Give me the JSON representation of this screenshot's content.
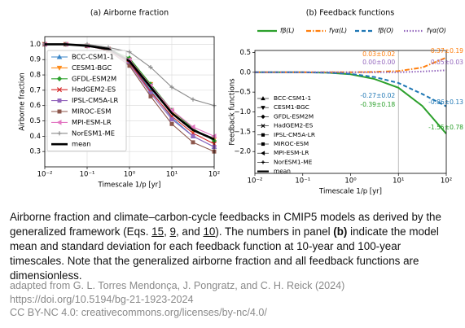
{
  "chart_data": [
    {
      "type": "line",
      "title": "(a)   Airborne fraction",
      "xlabel": "Timescale 1/p [yr]",
      "ylabel": "Airborne fraction",
      "log_x": true,
      "grid": true,
      "legend": "lower left",
      "xlim": [
        0.01,
        100
      ],
      "ylim": [
        0.2,
        1.05
      ],
      "xticks": [
        {
          "value": 0.01,
          "label": "10⁻²"
        },
        {
          "value": 0.1,
          "label": "10⁻¹"
        },
        {
          "value": 1,
          "label": "10⁰"
        },
        {
          "value": 10,
          "label": "10¹"
        },
        {
          "value": 100,
          "label": "10²"
        }
      ],
      "yticks": [
        0.3,
        0.4,
        0.5,
        0.6,
        0.7,
        0.8,
        0.9,
        {
          "value": 1.0,
          "label": "1.0"
        }
      ],
      "x": [
        0.01,
        0.0316,
        0.1,
        0.316,
        1,
        3.16,
        10,
        31.6,
        100
      ],
      "series": [
        {
          "name": "BCC-CSM1-1",
          "color": "#3a86c8",
          "marker": "triangle-up",
          "values": [
            1.0,
            1.0,
            0.99,
            0.96,
            0.88,
            0.7,
            0.52,
            0.4,
            0.33
          ]
        },
        {
          "name": "CESM1-BGC",
          "color": "#ff8c1a",
          "marker": "triangle-down",
          "values": [
            1.0,
            1.0,
            0.99,
            0.97,
            0.9,
            0.74,
            0.56,
            0.44,
            0.38
          ]
        },
        {
          "name": "GFDL-ESM2M",
          "color": "#2ca02c",
          "marker": "diamond",
          "values": [
            1.0,
            1.0,
            0.99,
            0.97,
            0.91,
            0.74,
            0.57,
            0.45,
            0.37
          ]
        },
        {
          "name": "HadGEM2-ES",
          "color": "#d62728",
          "marker": "x",
          "values": [
            1.0,
            1.0,
            0.99,
            0.96,
            0.88,
            0.69,
            0.53,
            0.42,
            0.35
          ]
        },
        {
          "name": "IPSL-CM5A-LR",
          "color": "#9467bd",
          "marker": "square",
          "values": [
            1.0,
            1.0,
            0.99,
            0.96,
            0.87,
            0.68,
            0.51,
            0.4,
            0.33
          ]
        },
        {
          "name": "MIROC-ESM",
          "color": "#8c564b",
          "marker": "square",
          "values": [
            1.0,
            1.0,
            0.99,
            0.96,
            0.86,
            0.66,
            0.48,
            0.36,
            0.3
          ]
        },
        {
          "name": "MPI-ESM-LR",
          "color": "#e377c2",
          "marker": "triangle-left",
          "values": [
            1.0,
            1.0,
            0.99,
            0.97,
            0.9,
            0.73,
            0.57,
            0.46,
            0.4
          ]
        },
        {
          "name": "NorESM1-ME",
          "color": "#8c8c8c",
          "marker": "plus",
          "values": [
            1.0,
            1.0,
            1.0,
            0.98,
            0.95,
            0.85,
            0.72,
            0.64,
            0.6
          ]
        },
        {
          "name": "mean",
          "color": "#000000",
          "marker": "none",
          "values": [
            1.0,
            1.0,
            0.99,
            0.97,
            0.89,
            0.72,
            0.55,
            0.44,
            0.38
          ]
        }
      ]
    },
    {
      "type": "line",
      "title": "(b)   Feedback functions",
      "xlabel": "Timescale 1/p [yr]",
      "ylabel": "Feedback functions",
      "log_x": true,
      "grid": false,
      "legend": "top",
      "xlim": [
        0.01,
        100
      ],
      "ylim": [
        -2.55,
        0.55
      ],
      "vline": 10,
      "xticks": [
        {
          "value": 0.01,
          "label": "10⁻²"
        },
        {
          "value": 0.1,
          "label": "10⁻¹"
        },
        {
          "value": 1,
          "label": "10⁰"
        },
        {
          "value": 10,
          "label": "10¹"
        },
        {
          "value": 100,
          "label": "10²"
        }
      ],
      "yticks": [
        {
          "value": -2.0,
          "label": "−2.0"
        },
        {
          "value": -1.5,
          "label": "−1.5"
        },
        {
          "value": -1.0,
          "label": "−1.0"
        },
        {
          "value": -0.5,
          "label": "−0.5"
        },
        {
          "value": 0.0,
          "label": "0.0"
        },
        {
          "value": 0.5,
          "label": "0.5"
        }
      ],
      "x": [
        0.01,
        0.0316,
        0.1,
        0.316,
        1,
        3.16,
        10,
        31.6,
        100
      ],
      "series": [
        {
          "name": "fβ(L)",
          "color": "#2ca02c",
          "dash": "solid",
          "values": [
            0,
            0,
            0,
            -0.01,
            -0.05,
            -0.17,
            -0.39,
            -0.85,
            -1.55
          ]
        },
        {
          "name": "fγα(L)",
          "color": "#ff7f0e",
          "dash": "dashdot",
          "values": [
            0,
            0,
            0,
            0,
            0,
            0.01,
            0.03,
            0.12,
            0.37
          ]
        },
        {
          "name": "fβ(O)",
          "color": "#1f77b4",
          "dash": "dashed",
          "values": [
            0,
            0,
            0,
            -0.01,
            -0.04,
            -0.12,
            -0.27,
            -0.55,
            -0.86
          ]
        },
        {
          "name": "fγα(O)",
          "color": "#9467bd",
          "dash": "dotted",
          "values": [
            0,
            0,
            0,
            0,
            0,
            0,
            0.0,
            0.02,
            0.05
          ]
        }
      ],
      "models": [
        {
          "name": "BCC-CSM1-1",
          "marker": "triangle-up"
        },
        {
          "name": "CESM1-BGC",
          "marker": "triangle-down"
        },
        {
          "name": "GFDL-ESM2M",
          "marker": "diamond"
        },
        {
          "name": "HadGEM2-ES",
          "marker": "x"
        },
        {
          "name": "IPSL-CM5A-LR",
          "marker": "square"
        },
        {
          "name": "MIROC-ESM",
          "marker": "square"
        },
        {
          "name": "MPI-ESM-LR",
          "marker": "triangle-left"
        },
        {
          "name": "NorESM1-ME",
          "marker": "plus"
        },
        {
          "name": "mean",
          "marker": "none"
        }
      ],
      "annotations_left": [
        {
          "text": "0.03±0.02",
          "color": "#ff7f0e"
        },
        {
          "text": "0.00±0.00",
          "color": "#9467bd"
        },
        {
          "text": "-0.27±0.02",
          "color": "#1f77b4"
        },
        {
          "text": "-0.39±0.18",
          "color": "#2ca02c"
        }
      ],
      "annotations_right": [
        {
          "text": "0.37±0.19",
          "color": "#ff7f0e"
        },
        {
          "text": "0.05±0.03",
          "color": "#9467bd"
        },
        {
          "text": "-0.86±0.13",
          "color": "#1f77b4"
        },
        {
          "text": "-1.55±0.78",
          "color": "#2ca02c"
        }
      ]
    }
  ],
  "caption": [
    "Airborne fraction and climate–carbon-cycle feedbacks in CMIP5 models as derived by the generalized framework (Eqs. ",
    "15",
    ", ",
    "9",
    ", and ",
    "10",
    "). The numbers in panel ",
    "(b)",
    " indicate the model mean and standard deviation for each feedback function at 10-year and 100-year timescales. Note that the generalized airborne fraction and all feedback functions are dimensionless."
  ],
  "source": [
    "adapted from G. L. Torres Mendonça, J. Pongratz, and C. H. Reick (2024)",
    "https://doi.org/10.5194/bg-21-1923-2024",
    "CC BY-NC 4.0: creativecommons.org/licenses/by-nc/4.0/"
  ]
}
